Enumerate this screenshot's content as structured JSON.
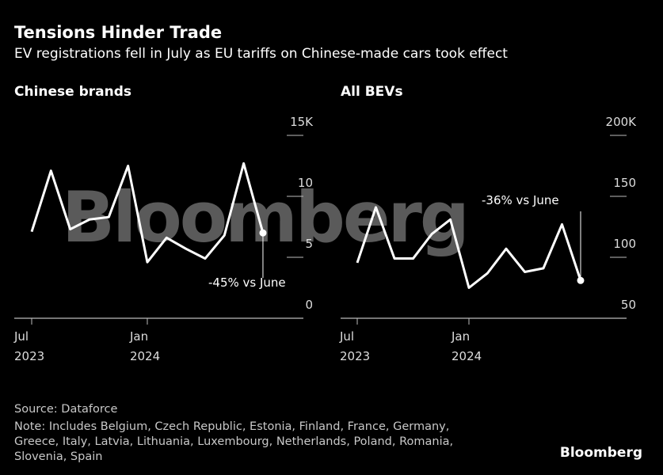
{
  "title": "Tensions Hinder Trade",
  "subtitle": "EV registrations fell in July as EU tariffs on Chinese-made cars took effect",
  "watermark": "Bloomberg",
  "chart_data": [
    {
      "type": "line",
      "title": "Chinese brands",
      "categories": [
        "Jul 2023",
        null,
        null,
        null,
        null,
        null,
        "Jan 2024",
        null,
        null,
        null,
        null,
        null,
        null
      ],
      "values": [
        7.1,
        12.1,
        7.3,
        8.1,
        8.3,
        12.5,
        4.6,
        6.6,
        5.7,
        4.9,
        6.8,
        12.7,
        7.0
      ],
      "color": "#ffffff",
      "ylim": [
        0,
        15
      ],
      "yticks": [
        0,
        5,
        10,
        {
          "value": 15,
          "label": "15K"
        }
      ],
      "annotation": "-45% vs June"
    },
    {
      "type": "line",
      "title": "All BEVs",
      "categories": [
        "Jul 2023",
        null,
        null,
        null,
        null,
        null,
        "Jan 2024",
        null,
        null,
        null,
        null,
        null,
        null
      ],
      "values": [
        95.5,
        141,
        99,
        99,
        119,
        131,
        75,
        87,
        107,
        88,
        91,
        127,
        81
      ],
      "color": "#ffffff",
      "ylim": [
        50,
        200
      ],
      "yticks": [
        50,
        100,
        150,
        {
          "value": 200,
          "label": "200K"
        }
      ],
      "annotation": "-36% vs June"
    }
  ],
  "source": "Source: Dataforce",
  "note": [
    "Note: Includes Belgium, Czech Republic, Estonia, Finland, France, Germany,",
    "Greece, Italy, Latvia, Lithuania, Luxembourg, Netherlands, Poland, Romania,",
    "Slovenia, Spain"
  ],
  "logo": "Bloomberg"
}
